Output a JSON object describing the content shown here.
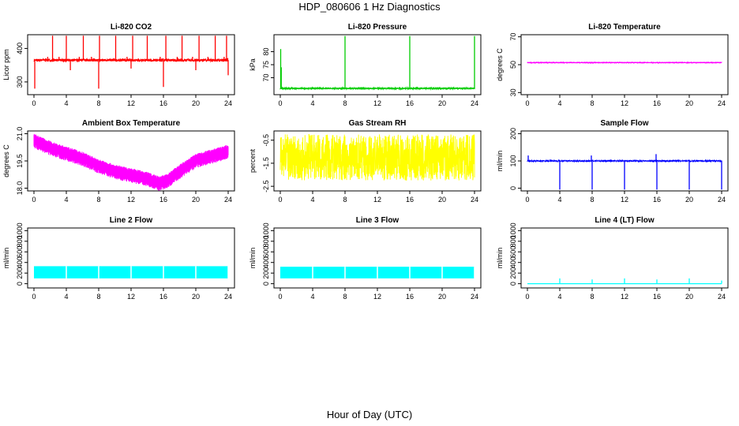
{
  "figure": {
    "title": "HDP_080606  1 Hz Diagnostics",
    "xlabel": "Hour of Day (UTC)"
  },
  "chart_data": [
    {
      "type": "line",
      "title": "Li-820 CO2",
      "ylabel": "Licor ppm",
      "color": "#ff0000",
      "xlim": [
        0,
        24
      ],
      "ylim": [
        262,
        441
      ],
      "xticks": [
        "0",
        "4",
        "8",
        "12",
        "16",
        "20",
        "24"
      ],
      "xtick_values": [
        0,
        4,
        8,
        12,
        16,
        20,
        24
      ],
      "yticks": [
        "300",
        "400"
      ],
      "ytick_values": [
        300,
        400
      ],
      "baseline": 365,
      "noise": 4,
      "spikes": [
        [
          0.1,
          280
        ],
        [
          1.7,
          375
        ],
        [
          2.3,
          438
        ],
        [
          3.1,
          375
        ],
        [
          4.0,
          438
        ],
        [
          4.5,
          335
        ],
        [
          5.6,
          375
        ],
        [
          6.1,
          438
        ],
        [
          7.1,
          375
        ],
        [
          8.0,
          280
        ],
        [
          8.1,
          438
        ],
        [
          10.1,
          438
        ],
        [
          11.5,
          375
        ],
        [
          12.0,
          340
        ],
        [
          12.2,
          438
        ],
        [
          14.0,
          438
        ],
        [
          15.6,
          375
        ],
        [
          16.0,
          285
        ],
        [
          16.3,
          438
        ],
        [
          17.7,
          375
        ],
        [
          18.3,
          438
        ],
        [
          19.6,
          375
        ],
        [
          20.0,
          335
        ],
        [
          20.4,
          438
        ],
        [
          21.5,
          375
        ],
        [
          22.4,
          438
        ],
        [
          23.5,
          375
        ],
        [
          23.8,
          438
        ],
        [
          24.0,
          320
        ]
      ]
    },
    {
      "type": "line",
      "title": "Li-820 Pressure",
      "ylabel": "kPa",
      "color": "#00cc00",
      "xlim": [
        0,
        24
      ],
      "ylim": [
        63.5,
        86.5
      ],
      "xticks": [
        "0",
        "4",
        "8",
        "12",
        "16",
        "20",
        "24"
      ],
      "xtick_values": [
        0,
        4,
        8,
        12,
        16,
        20,
        24
      ],
      "yticks": [
        "70",
        "75",
        "80"
      ],
      "ytick_values": [
        70,
        75,
        80
      ],
      "baseline": 65.9,
      "noise": 0.15,
      "spikes": [
        [
          0.05,
          81
        ],
        [
          0.12,
          74
        ],
        [
          8.0,
          86
        ],
        [
          16.0,
          86
        ],
        [
          24.0,
          86
        ]
      ]
    },
    {
      "type": "line",
      "title": "Li-820 Temperature",
      "ylabel": "degrees C",
      "color": "#ff00ff",
      "xlim": [
        0,
        24
      ],
      "ylim": [
        28.5,
        71.5
      ],
      "xticks": [
        "0",
        "4",
        "8",
        "12",
        "16",
        "20",
        "24"
      ],
      "xtick_values": [
        0,
        4,
        8,
        12,
        16,
        20,
        24
      ],
      "yticks": [
        "30",
        "50",
        "70"
      ],
      "ytick_values": [
        30,
        50,
        70
      ],
      "baseline": 51.5,
      "noise": 0.1,
      "spikes": []
    },
    {
      "type": "line",
      "title": "Ambient Box Temperature",
      "ylabel": "degrees C",
      "color": "#ff00ff",
      "xlim": [
        0,
        24
      ],
      "ylim": [
        17.85,
        21.15
      ],
      "xticks": [
        "0",
        "4",
        "8",
        "12",
        "16",
        "20",
        "24"
      ],
      "xtick_values": [
        0,
        4,
        8,
        12,
        16,
        20,
        24
      ],
      "yticks": [
        "18.0",
        "19.5",
        "21.0"
      ],
      "ytick_values": [
        18.0,
        19.5,
        21.0
      ],
      "trend": [
        [
          0,
          20.6
        ],
        [
          2,
          20.2
        ],
        [
          4,
          19.9
        ],
        [
          6,
          19.6
        ],
        [
          8,
          19.2
        ],
        [
          10,
          18.9
        ],
        [
          12,
          18.7
        ],
        [
          14,
          18.5
        ],
        [
          15.5,
          18.25
        ],
        [
          16.5,
          18.4
        ],
        [
          18,
          18.9
        ],
        [
          20,
          19.5
        ],
        [
          22,
          19.75
        ],
        [
          24,
          20.0
        ]
      ],
      "noise": 0.4,
      "spikes": []
    },
    {
      "type": "line",
      "title": "Gas Stream RH",
      "ylabel": "percent",
      "color": "#ffff00",
      "xlim": [
        0,
        24
      ],
      "ylim": [
        -2.7,
        -0.1
      ],
      "xticks": [
        "0",
        "4",
        "8",
        "12",
        "16",
        "20",
        "24"
      ],
      "xtick_values": [
        0,
        4,
        8,
        12,
        16,
        20,
        24
      ],
      "yticks": [
        "-2.5",
        "-1.5",
        "-0.5"
      ],
      "ytick_values": [
        -2.5,
        -1.5,
        -0.5
      ],
      "baseline": -1.25,
      "noise": 1.0,
      "spikes": []
    },
    {
      "type": "line",
      "title": "Sample Flow",
      "ylabel": "ml/min",
      "color": "#0000ff",
      "xlim": [
        0,
        24
      ],
      "ylim": [
        -10,
        210
      ],
      "xticks": [
        "0",
        "4",
        "8",
        "12",
        "16",
        "20",
        "24"
      ],
      "xtick_values": [
        0,
        4,
        8,
        12,
        16,
        20,
        24
      ],
      "yticks": [
        "0",
        "100",
        "200"
      ],
      "ytick_values": [
        0,
        100,
        200
      ],
      "baseline": 100,
      "noise": 2,
      "spikes": [
        [
          0.1,
          120
        ],
        [
          4.0,
          -5
        ],
        [
          7.9,
          120
        ],
        [
          8.0,
          -5
        ],
        [
          12.0,
          -5
        ],
        [
          15.9,
          125
        ],
        [
          16.0,
          -5
        ],
        [
          20.0,
          -5
        ],
        [
          24.0,
          -5
        ]
      ]
    },
    {
      "type": "line",
      "title": "Line 2 Flow",
      "ylabel": "ml/min",
      "color": "#00ffff",
      "xlim": [
        0,
        24
      ],
      "ylim": [
        -80,
        1050
      ],
      "xticks": [
        "0",
        "4",
        "8",
        "12",
        "16",
        "20",
        "24"
      ],
      "xtick_values": [
        0,
        4,
        8,
        12,
        16,
        20,
        24
      ],
      "yticks": [
        "0",
        "200",
        "400",
        "600",
        "800",
        "1000"
      ],
      "ytick_values": [
        0,
        200,
        400,
        600,
        800,
        1000
      ],
      "band": [
        100,
        330
      ],
      "gaps": [
        4,
        8,
        12,
        16,
        20,
        24
      ]
    },
    {
      "type": "line",
      "title": "Line 3 Flow",
      "ylabel": "ml/min",
      "color": "#00ffff",
      "xlim": [
        0,
        24
      ],
      "ylim": [
        -80,
        1050
      ],
      "xticks": [
        "0",
        "4",
        "8",
        "12",
        "16",
        "20",
        "24"
      ],
      "xtick_values": [
        0,
        4,
        8,
        12,
        16,
        20,
        24
      ],
      "yticks": [
        "0",
        "200",
        "400",
        "600",
        "800",
        "1000"
      ],
      "ytick_values": [
        0,
        200,
        400,
        600,
        800,
        1000
      ],
      "band": [
        100,
        320
      ],
      "gaps": [
        4,
        8,
        12,
        16,
        20,
        24
      ]
    },
    {
      "type": "line",
      "title": "Line 4 (LT) Flow",
      "ylabel": "ml/min",
      "color": "#00ffff",
      "xlim": [
        0,
        24
      ],
      "ylim": [
        -80,
        1050
      ],
      "xticks": [
        "0",
        "4",
        "8",
        "12",
        "16",
        "20",
        "24"
      ],
      "xtick_values": [
        0,
        4,
        8,
        12,
        16,
        20,
        24
      ],
      "yticks": [
        "0",
        "200",
        "400",
        "600",
        "800",
        "1000"
      ],
      "ytick_values": [
        0,
        200,
        400,
        600,
        800,
        1000
      ],
      "baseline": 0,
      "noise": 0,
      "spikes": [
        [
          4.0,
          100
        ],
        [
          8.0,
          80
        ],
        [
          12.0,
          100
        ],
        [
          16.0,
          80
        ],
        [
          20.0,
          100
        ],
        [
          24.0,
          60
        ]
      ]
    }
  ]
}
